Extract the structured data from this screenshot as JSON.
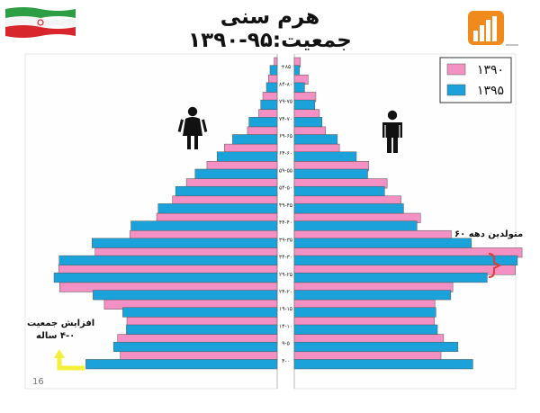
{
  "title": "هرم سنی جمعیت:۹۵-۱۳۹۰",
  "page_number": "16",
  "annotations": {
    "cohort_60s": "متولدین دهه ۶۰",
    "growth_line1": "افزایش جمعیت",
    "growth_line2": "۴-۰ ساله"
  },
  "colors": {
    "series_1390": "#f491c4",
    "series_1395": "#1ba2da",
    "panel_bg": "#fefefe",
    "bracket": "#e23b3b",
    "arrow": "#f2f03a"
  },
  "icons": [
    "iran-flag-icon",
    "logo-icon",
    "female-icon",
    "male-icon",
    "bracket-icon",
    "arrow-icon"
  ],
  "chart_data": {
    "type": "bar",
    "orientation": "horizontal-population-pyramid",
    "title": "هرم سنی جمعیت:۹۵-۱۳۹۰",
    "categories": [
      "۴-۰",
      "۹-۵",
      "۱۴-۱۰",
      "۱۹-۱۵",
      "۲۴-۲۰",
      "۲۹-۲۵",
      "۳۴-۳۰",
      "۳۹-۳۵",
      "۴۴-۴۰",
      "۴۹-۴۵",
      "۵۴-۵۰",
      "۵۹-۵۵",
      "۶۴-۶۰",
      "۶۹-۶۵",
      "۷۴-۷۰",
      "۷۹-۷۵",
      "۸۴-۸۰",
      "+۸۵"
    ],
    "legend": [
      "۱۳۹۰",
      "۱۳۹۵"
    ],
    "legend_position": "top-right",
    "female": {
      "series": [
        {
          "name": "۱۳۹۰",
          "values": [
            3.06,
            3.11,
            2.93,
            3.37,
            4.24,
            4.26,
            3.55,
            2.87,
            2.35,
            2.04,
            1.77,
            1.37,
            1.03,
            0.58,
            0.36,
            0.28,
            0.17,
            0.06
          ]
        },
        {
          "name": "۱۳۹۵",
          "values": [
            3.73,
            3.19,
            2.94,
            3.01,
            3.59,
            4.35,
            4.25,
            3.61,
            2.85,
            2.32,
            1.98,
            1.6,
            1.17,
            0.87,
            0.55,
            0.32,
            0.21,
            0.14
          ]
        }
      ]
    },
    "male": {
      "series": [
        {
          "name": "۱۳۹۰",
          "values": [
            2.86,
            2.91,
            2.73,
            2.74,
            3.09,
            4.31,
            4.44,
            3.06,
            2.46,
            2.08,
            1.81,
            1.45,
            0.88,
            0.61,
            0.49,
            0.42,
            0.27,
            0.12
          ]
        },
        {
          "name": "۱۳۹۵",
          "values": [
            3.48,
            3.19,
            2.79,
            2.76,
            3.05,
            3.76,
            4.35,
            3.45,
            2.39,
            2.13,
            1.76,
            1.43,
            1.21,
            0.84,
            0.54,
            0.4,
            0.2,
            0.1
          ]
        }
      ]
    },
    "xlim": [
      0,
      5
    ],
    "grid": false
  }
}
